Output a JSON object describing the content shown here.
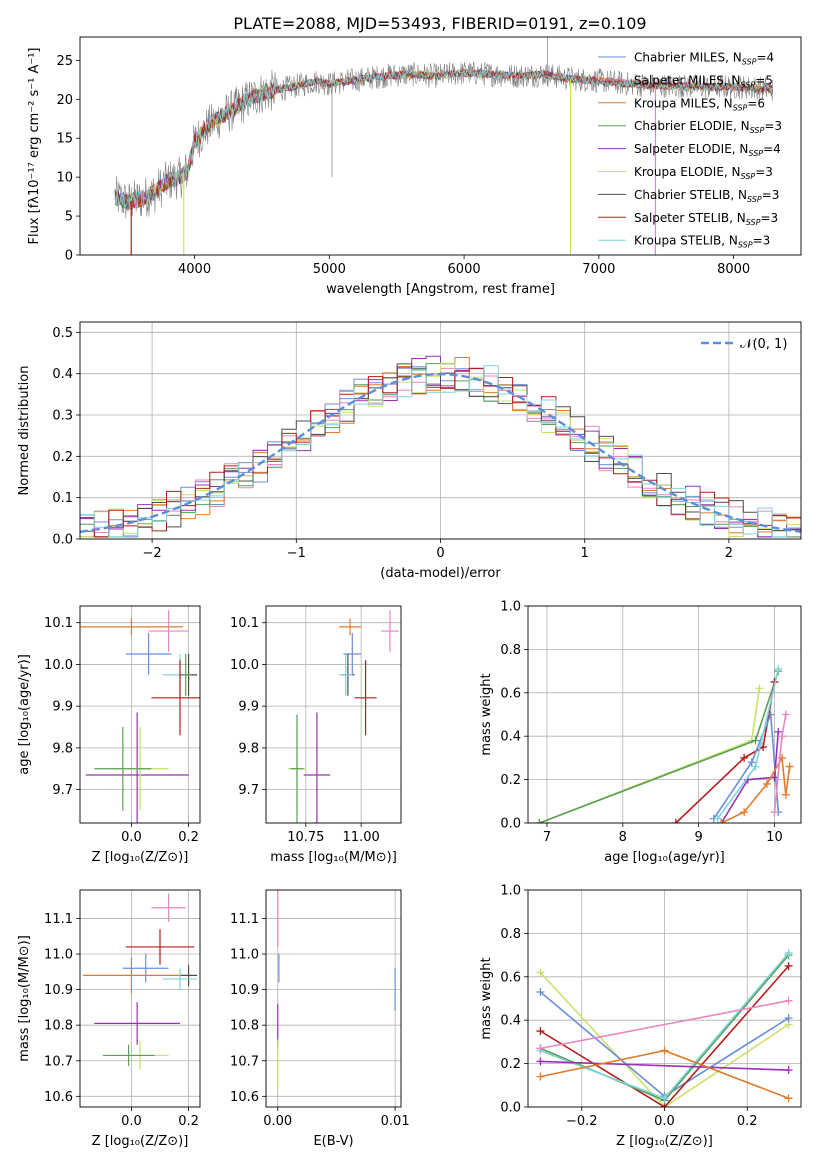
{
  "figure_title": "PLATE=2088, MJD=53493, FIBERID=0191, z=0.109",
  "colors": {
    "chabrier_miles": "#6a8fd6",
    "salpeter_miles": "#e887c2",
    "kroupa_miles": "#e07b2a",
    "chabrier_elodie": "#5a9e5a",
    "salpeter_elodie": "#9b30b5",
    "kroupa_elodie": "#c7e36a",
    "chabrier_stelib": "#4d4d4d",
    "salpeter_stelib": "#b71c1c",
    "kroupa_stelib": "#7fd3dd",
    "normal_curve": "#5b8fd9",
    "data": "#808080"
  },
  "chart_data": [
    {
      "id": "spectrum",
      "type": "line",
      "xlabel": "wavelength [Angstrom, rest frame]",
      "ylabel": "Flux [fλ10⁻¹⁷ erg cm⁻² s⁻¹ A⁻¹]",
      "xlim": [
        3150,
        8500
      ],
      "ylim": [
        0,
        28
      ],
      "xticks": [
        4000,
        5000,
        6000,
        7000,
        8000
      ],
      "yticks": [
        0,
        5,
        10,
        15,
        20,
        25
      ],
      "legend": "top-right",
      "continuum": {
        "x": [
          3410,
          3500,
          3600,
          3700,
          3800,
          3900,
          3950,
          4000,
          4100,
          4200,
          4300,
          4400,
          4500,
          4700,
          4900,
          5000,
          5200,
          5400,
          5600,
          5800,
          6000,
          6200,
          6400,
          6600,
          6800,
          7000,
          7200,
          7400,
          7600,
          7800,
          8000,
          8200,
          8290
        ],
        "y": [
          7.5,
          6.8,
          7.2,
          8.0,
          9.5,
          10.0,
          11.0,
          14.5,
          16.5,
          17.8,
          18.8,
          20.0,
          20.8,
          21.5,
          22.3,
          22.0,
          22.5,
          23.0,
          23.2,
          23.0,
          23.4,
          23.2,
          23.0,
          23.2,
          22.6,
          22.4,
          22.0,
          21.8,
          21.7,
          21.6,
          21.6,
          21.4,
          21.3
        ]
      },
      "dropouts": [
        {
          "series": "Salpeter STELIB",
          "x": 3530
        },
        {
          "series": "Kroupa ELODIE",
          "x": 3920
        },
        {
          "series": "Kroupa ELODIE",
          "x": 6790
        },
        {
          "series": "Salpeter MILES",
          "x": 7420
        }
      ],
      "series": [
        {
          "name": "Chabrier MILES, N",
          "sub": "SSP",
          "suffix": "=4",
          "color_key": "chabrier_miles"
        },
        {
          "name": "Salpeter MILES, N",
          "sub": "SSP",
          "suffix": "=5",
          "color_key": "salpeter_miles"
        },
        {
          "name": "Kroupa MILES, N",
          "sub": "SSP",
          "suffix": "=6",
          "color_key": "kroupa_miles"
        },
        {
          "name": "Chabrier ELODIE, N",
          "sub": "SSP",
          "suffix": "=3",
          "color_key": "chabrier_elodie"
        },
        {
          "name": "Salpeter ELODIE, N",
          "sub": "SSP",
          "suffix": "=4",
          "color_key": "salpeter_elodie"
        },
        {
          "name": "Kroupa ELODIE, N",
          "sub": "SSP",
          "suffix": "=3",
          "color_key": "kroupa_elodie"
        },
        {
          "name": "Chabrier STELIB, N",
          "sub": "SSP",
          "suffix": "=3",
          "color_key": "chabrier_stelib"
        },
        {
          "name": "Salpeter STELIB, N",
          "sub": "SSP",
          "suffix": "=3",
          "color_key": "salpeter_stelib"
        },
        {
          "name": "Kroupa STELIB, N",
          "sub": "SSP",
          "suffix": "=3",
          "color_key": "kroupa_stelib"
        }
      ]
    },
    {
      "id": "residuals",
      "type": "histogram",
      "xlabel": "(data-model)/error",
      "ylabel": "Normed distribution",
      "xlim": [
        -2.5,
        2.5
      ],
      "ylim": [
        0,
        0.525
      ],
      "xticks": [
        -2,
        -1,
        0,
        1,
        2
      ],
      "yticks": [
        0.0,
        0.1,
        0.2,
        0.3,
        0.4,
        0.5
      ],
      "grid": true,
      "legend": "top-right",
      "bin_width": 0.1,
      "curve_label": "𝒩(0, 1)"
    },
    {
      "id": "age_vs_Z",
      "type": "errorbar",
      "xlabel": "Z [log₁₀(Z/Z⊙)]",
      "ylabel": "age  [log₁₀(age/yr)]",
      "xlim": [
        -0.18,
        0.24
      ],
      "ylim": [
        9.62,
        10.14
      ],
      "xticks": [
        0.0,
        0.2
      ],
      "yticks": [
        9.7,
        9.8,
        9.9,
        10.0,
        10.1
      ],
      "grid": true,
      "points": [
        {
          "c": "kroupa_miles",
          "x": 0.0,
          "xe": 0.18,
          "y": 10.09,
          "ye": 0.02
        },
        {
          "c": "salpeter_miles",
          "x": 0.13,
          "xe": 0.07,
          "y": 10.08,
          "ye": 0.05
        },
        {
          "c": "chabrier_miles",
          "x": 0.06,
          "xe": 0.08,
          "y": 10.025,
          "ye": 0.05
        },
        {
          "c": "kroupa_stelib",
          "x": 0.17,
          "xe": 0.06,
          "y": 9.975,
          "ye": 0.05
        },
        {
          "c": "chabrier_stelib",
          "x": 0.2,
          "xe": 0.03,
          "y": 9.975,
          "ye": 0.05
        },
        {
          "c": "chabrier_elodie",
          "x": 0.19,
          "xe": 0.02,
          "y": 9.975,
          "ye": 0.05
        },
        {
          "c": "salpeter_stelib",
          "x": 0.17,
          "xe": 0.1,
          "y": 9.92,
          "ye": 0.09
        },
        {
          "c": "salpeter_elodie",
          "x": 0.02,
          "xe": 0.18,
          "y": 9.735,
          "ye": 0.15
        },
        {
          "c": "kroupa_elodie",
          "x": 0.03,
          "xe": 0.1,
          "y": 9.75,
          "ye": 0.1
        },
        {
          "c": "chabrier_elodie",
          "x": -0.03,
          "xe": 0.1,
          "y": 9.75,
          "ye": 0.1
        }
      ]
    },
    {
      "id": "age_vs_mass",
      "type": "errorbar",
      "xlabel": "mass [log₁₀(M/M⊙)]",
      "ylabel": "",
      "xlim": [
        10.57,
        11.18
      ],
      "ylim": [
        9.62,
        10.14
      ],
      "xticks": [
        10.75,
        11.0
      ],
      "yticks": [
        9.7,
        9.8,
        9.9,
        10.0,
        10.1
      ],
      "grid": true,
      "points": [
        {
          "c": "salpeter_miles",
          "x": 11.13,
          "xe": 0.04,
          "y": 10.08,
          "ye": 0.05
        },
        {
          "c": "kroupa_miles",
          "x": 10.95,
          "xe": 0.05,
          "y": 10.09,
          "ye": 0.02
        },
        {
          "c": "chabrier_miles",
          "x": 10.96,
          "xe": 0.04,
          "y": 10.025,
          "ye": 0.05
        },
        {
          "c": "salpeter_stelib",
          "x": 11.02,
          "xe": 0.05,
          "y": 9.92,
          "ye": 0.09
        },
        {
          "c": "chabrier_stelib",
          "x": 10.94,
          "xe": 0.03,
          "y": 9.975,
          "ye": 0.05
        },
        {
          "c": "kroupa_stelib",
          "x": 10.93,
          "xe": 0.03,
          "y": 9.975,
          "ye": 0.05
        },
        {
          "c": "kroupa_elodie",
          "x": 10.71,
          "xe": 0.04,
          "y": 9.75,
          "ye": 0.1
        },
        {
          "c": "chabrier_elodie",
          "x": 10.71,
          "xe": 0.03,
          "y": 9.75,
          "ye": 0.13
        },
        {
          "c": "salpeter_elodie",
          "x": 10.8,
          "xe": 0.06,
          "y": 9.735,
          "ye": 0.15
        }
      ]
    },
    {
      "id": "weight_vs_age",
      "type": "line",
      "xlabel": "age  [log₁₀(age/yr)]",
      "ylabel": "mass weight",
      "xlim": [
        6.75,
        10.35
      ],
      "ylim": [
        0,
        1.0
      ],
      "xticks": [
        7,
        8,
        9,
        10
      ],
      "yticks": [
        0.0,
        0.2,
        0.4,
        0.6,
        0.8,
        1.0
      ],
      "grid": true,
      "series": [
        {
          "c": "kroupa_elodie",
          "x": [
            6.9,
            9.7,
            9.8
          ],
          "y": [
            0.0,
            0.38,
            0.62
          ]
        },
        {
          "c": "chabrier_elodie",
          "x": [
            6.9,
            9.75,
            10.05
          ],
          "y": [
            0.0,
            0.38,
            0.7
          ]
        },
        {
          "c": "salpeter_stelib",
          "x": [
            8.7,
            9.6,
            9.85,
            10.0
          ],
          "y": [
            0.0,
            0.3,
            0.35,
            0.65
          ]
        },
        {
          "c": "chabrier_miles",
          "x": [
            9.2,
            9.7,
            9.95,
            10.05
          ],
          "y": [
            0.02,
            0.28,
            0.5,
            0.05
          ]
        },
        {
          "c": "salpeter_elodie",
          "x": [
            9.3,
            9.65,
            10.0,
            10.05
          ],
          "y": [
            0.0,
            0.2,
            0.21,
            0.42
          ]
        },
        {
          "c": "kroupa_miles",
          "x": [
            9.3,
            9.6,
            9.9,
            10.1,
            10.15,
            10.2
          ],
          "y": [
            0.0,
            0.05,
            0.18,
            0.3,
            0.13,
            0.26
          ]
        },
        {
          "c": "salpeter_miles",
          "x": [
            10.0,
            10.1,
            10.15
          ],
          "y": [
            0.05,
            0.4,
            0.5
          ]
        },
        {
          "c": "kroupa_stelib",
          "x": [
            9.25,
            9.75,
            10.05
          ],
          "y": [
            0.02,
            0.26,
            0.71
          ]
        }
      ]
    },
    {
      "id": "mass_vs_Z",
      "type": "errorbar",
      "xlabel": "Z [log₁₀(Z/Z⊙)]",
      "ylabel": "mass [log₁₀(M/M⊙)]",
      "xlim": [
        -0.18,
        0.24
      ],
      "ylim": [
        10.57,
        11.18
      ],
      "xticks": [
        0.0,
        0.2
      ],
      "yticks": [
        10.6,
        10.7,
        10.8,
        10.9,
        11.0,
        11.1
      ],
      "grid": true,
      "points": [
        {
          "c": "salpeter_miles",
          "x": 0.13,
          "xe": 0.06,
          "y": 11.13,
          "ye": 0.04
        },
        {
          "c": "salpeter_stelib",
          "x": 0.1,
          "xe": 0.12,
          "y": 11.02,
          "ye": 0.05
        },
        {
          "c": "chabrier_miles",
          "x": 0.05,
          "xe": 0.08,
          "y": 10.96,
          "ye": 0.04
        },
        {
          "c": "kroupa_miles",
          "x": 0.0,
          "xe": 0.17,
          "y": 10.94,
          "ye": 0.05
        },
        {
          "c": "chabrier_stelib",
          "x": 0.2,
          "xe": 0.03,
          "y": 10.94,
          "ye": 0.03
        },
        {
          "c": "kroupa_stelib",
          "x": 0.17,
          "xe": 0.06,
          "y": 10.93,
          "ye": 0.03
        },
        {
          "c": "salpeter_elodie",
          "x": 0.02,
          "xe": 0.15,
          "y": 10.805,
          "ye": 0.06
        },
        {
          "c": "kroupa_elodie",
          "x": 0.03,
          "xe": 0.1,
          "y": 10.715,
          "ye": 0.04
        },
        {
          "c": "chabrier_elodie",
          "x": -0.01,
          "xe": 0.09,
          "y": 10.715,
          "ye": 0.03
        }
      ]
    },
    {
      "id": "mass_vs_ebv",
      "type": "errorbar",
      "xlabel": "E(B-V)",
      "ylabel": "",
      "xlim": [
        -0.001,
        0.0105
      ],
      "ylim": [
        10.57,
        11.18
      ],
      "xticks": [
        0.0,
        0.01
      ],
      "xticklabels": [
        "0.00",
        "0.01"
      ],
      "yticks": [
        10.6,
        10.7,
        10.8,
        10.9,
        11.0,
        11.1
      ],
      "grid": true,
      "points": [
        {
          "c": "salpeter_miles",
          "x": 0.0,
          "xe": 0,
          "y": 11.1,
          "ye": 0.08
        },
        {
          "c": "chabrier_miles",
          "x": 0.0001,
          "xe": 0,
          "y": 10.96,
          "ye": 0.04
        },
        {
          "c": "salpeter_elodie",
          "x": 0.0,
          "xe": 0,
          "y": 10.8,
          "ye": 0.06
        },
        {
          "c": "kroupa_elodie",
          "x": 0.0,
          "xe": 0,
          "y": 10.69,
          "ye": 0.07
        },
        {
          "c": "chabrier_miles",
          "x": 0.01,
          "xe": 0,
          "y": 10.9,
          "ye": 0.06
        }
      ]
    },
    {
      "id": "weight_vs_Z",
      "type": "line",
      "xlabel": "Z [log₁₀(Z/Z⊙)]",
      "ylabel": "mass weight",
      "xlim": [
        -0.33,
        0.33
      ],
      "ylim": [
        0,
        1.0
      ],
      "xticks": [
        -0.2,
        0.0,
        0.2
      ],
      "yticks": [
        0.0,
        0.2,
        0.4,
        0.6,
        0.8,
        1.0
      ],
      "grid": true,
      "series": [
        {
          "c": "kroupa_elodie",
          "x": [
            -0.3,
            0.0,
            0.3
          ],
          "y": [
            0.62,
            0.0,
            0.38
          ]
        },
        {
          "c": "chabrier_miles",
          "x": [
            -0.3,
            0.0,
            0.3
          ],
          "y": [
            0.53,
            0.05,
            0.41
          ]
        },
        {
          "c": "salpeter_stelib",
          "x": [
            -0.3,
            0.0,
            0.3
          ],
          "y": [
            0.35,
            0.0,
            0.65
          ]
        },
        {
          "c": "chabrier_elodie",
          "x": [
            -0.3,
            0.0,
            0.3
          ],
          "y": [
            0.27,
            0.03,
            0.7
          ]
        },
        {
          "c": "kroupa_stelib",
          "x": [
            -0.3,
            0.0,
            0.3
          ],
          "y": [
            0.26,
            0.04,
            0.71
          ]
        },
        {
          "c": "salpeter_elodie",
          "x": [
            -0.3,
            0.3
          ],
          "y": [
            0.21,
            0.17
          ]
        },
        {
          "c": "salpeter_miles",
          "x": [
            -0.3,
            0.3
          ],
          "y": [
            0.27,
            0.49
          ]
        },
        {
          "c": "kroupa_miles",
          "x": [
            -0.3,
            0.0,
            0.3
          ],
          "y": [
            0.14,
            0.26,
            0.04
          ]
        }
      ]
    }
  ]
}
